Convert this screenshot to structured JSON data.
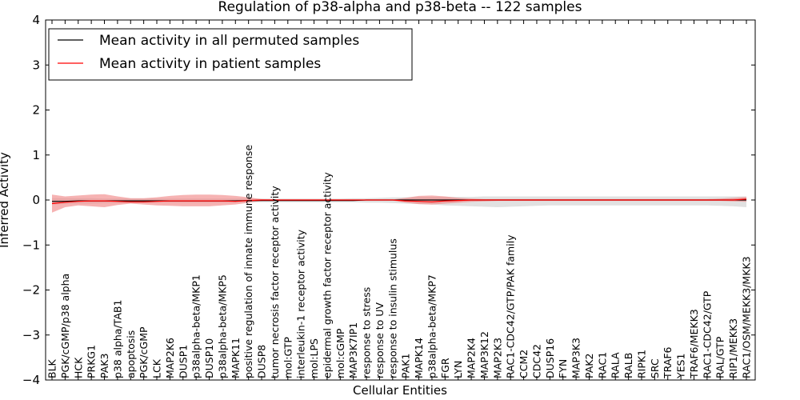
{
  "chart_data": {
    "type": "line",
    "title": "Regulation of p38-alpha and p38-beta -- 122 samples",
    "xlabel": "Cellular Entities",
    "ylabel": "Inferred Activity",
    "ylim": [
      -4,
      4
    ],
    "yticks": [
      -4,
      -3,
      -2,
      -1,
      0,
      1,
      2,
      3,
      4
    ],
    "ytick_labels": [
      "−4",
      "−3",
      "−2",
      "−1",
      "0",
      "1",
      "2",
      "3",
      "4"
    ],
    "legend_position": "top-left",
    "categories": [
      "BLK",
      "PGK/cGMP/p38 alpha",
      "HCK",
      "PRKG1",
      "PAK3",
      "p38 alpha/TAB1",
      "apoptosis",
      "PGK/cGMP",
      "LCK",
      "MAP2K6",
      "DUSP1",
      "p38alpha-beta/MKP1",
      "DUSP10",
      "p38alpha-beta/MKP5",
      "MAPK11",
      "positive regulation of innate immune response",
      "DUSP8",
      "tumor necrosis factor receptor activity",
      "mol:GTP",
      "interleukin-1 receptor activity",
      "mol:LPS",
      "epidermal growth factor receptor activity",
      "mol:cGMP",
      "MAP3K7IP1",
      "response to stress",
      "response to UV",
      "response to insulin stimulus",
      "PAK1",
      "MAPK14",
      "p38alpha-beta/MKP7",
      "FGR",
      "LYN",
      "MAP2K4",
      "MAP3K12",
      "MAP2K3",
      "RAC1-CDC42/GTP/PAK family",
      "CCM2",
      "CDC42",
      "DUSP16",
      "FYN",
      "MAP3K3",
      "PAK2",
      "RAC1",
      "RALA",
      "RALB",
      "RIPK1",
      "SRC",
      "TRAF6",
      "YES1",
      "TRAF6/MEKK3",
      "RAC1-CDC42/GTP",
      "RAL/GTP",
      "RIP1/MEKK3",
      "RAC1/OSM/MEKK3/MKK3"
    ],
    "series": [
      {
        "name": "Mean activity in all permuted samples",
        "color": "#000000",
        "values": [
          -0.03,
          -0.03,
          -0.02,
          -0.02,
          -0.02,
          -0.02,
          -0.02,
          -0.02,
          -0.02,
          -0.02,
          -0.02,
          -0.02,
          -0.02,
          -0.02,
          -0.02,
          -0.01,
          -0.01,
          -0.01,
          -0.01,
          -0.01,
          -0.01,
          -0.01,
          -0.01,
          -0.01,
          0,
          0,
          0,
          0,
          0,
          0,
          0,
          0,
          0,
          0,
          0,
          0,
          0,
          0,
          0,
          0,
          0,
          0,
          0,
          0,
          0,
          0,
          0,
          0,
          0,
          0,
          0,
          0,
          0,
          0
        ],
        "band_upper": [
          0.04,
          0.04,
          0.04,
          0.04,
          0.03,
          0.03,
          0.03,
          0.03,
          0.03,
          0.03,
          0.03,
          0.03,
          0.03,
          0.03,
          0.03,
          0.03,
          0.03,
          0.03,
          0.03,
          0.03,
          0.03,
          0.03,
          0.03,
          0.04,
          0.04,
          0.05,
          0.06,
          0.06,
          0.07,
          0.07,
          0.07,
          0.07,
          0.07,
          0.08,
          0.08,
          0.08,
          0.08,
          0.08,
          0.08,
          0.08,
          0.08,
          0.08,
          0.08,
          0.08,
          0.08,
          0.08,
          0.08,
          0.08,
          0.08,
          0.08,
          0.08,
          0.08,
          0.08,
          0.08
        ],
        "band_lower": [
          -0.1,
          -0.09,
          -0.08,
          -0.08,
          -0.07,
          -0.07,
          -0.07,
          -0.07,
          -0.06,
          -0.06,
          -0.06,
          -0.06,
          -0.06,
          -0.06,
          -0.06,
          -0.05,
          -0.05,
          -0.05,
          -0.05,
          -0.05,
          -0.05,
          -0.05,
          -0.05,
          -0.05,
          -0.06,
          -0.06,
          -0.07,
          -0.08,
          -0.09,
          -0.1,
          -0.12,
          -0.13,
          -0.14,
          -0.15,
          -0.16,
          -0.15,
          -0.14,
          -0.13,
          -0.12,
          -0.12,
          -0.12,
          -0.12,
          -0.12,
          -0.12,
          -0.12,
          -0.12,
          -0.12,
          -0.12,
          -0.12,
          -0.12,
          -0.12,
          -0.13,
          -0.14,
          -0.16
        ]
      },
      {
        "name": "Mean activity in patient samples",
        "color": "#ff0000",
        "values": [
          -0.08,
          -0.05,
          -0.03,
          -0.02,
          -0.02,
          -0.03,
          -0.04,
          -0.04,
          -0.03,
          -0.02,
          -0.02,
          -0.02,
          -0.02,
          -0.02,
          -0.03,
          -0.01,
          0,
          0,
          0,
          0,
          0,
          0,
          0,
          0,
          0,
          0,
          0,
          -0.02,
          -0.03,
          -0.04,
          -0.02,
          -0.01,
          0,
          0,
          0,
          0,
          0,
          0,
          0,
          0,
          0,
          0,
          0,
          0,
          0,
          0,
          0,
          0,
          0,
          0,
          0,
          0,
          0,
          0.02
        ],
        "band_upper": [
          0.12,
          0.08,
          0.1,
          0.12,
          0.13,
          0.08,
          0.04,
          0.04,
          0.06,
          0.09,
          0.11,
          0.12,
          0.12,
          0.11,
          0.09,
          0.06,
          0.02,
          0.01,
          0.01,
          0.01,
          0.01,
          0.01,
          0.01,
          0.01,
          0.01,
          0.01,
          0.01,
          0.05,
          0.09,
          0.1,
          0.08,
          0.05,
          0.03,
          0.02,
          0.02,
          0.02,
          0.02,
          0.02,
          0.02,
          0.02,
          0.02,
          0.02,
          0.02,
          0.02,
          0.02,
          0.02,
          0.02,
          0.02,
          0.02,
          0.02,
          0.02,
          0.03,
          0.05,
          0.07
        ],
        "band_lower": [
          -0.28,
          -0.16,
          -0.12,
          -0.14,
          -0.16,
          -0.11,
          -0.08,
          -0.1,
          -0.12,
          -0.13,
          -0.14,
          -0.14,
          -0.14,
          -0.12,
          -0.1,
          -0.06,
          -0.02,
          -0.01,
          -0.01,
          -0.01,
          -0.01,
          -0.01,
          -0.01,
          -0.01,
          -0.01,
          -0.01,
          -0.01,
          -0.06,
          -0.09,
          -0.1,
          -0.08,
          -0.06,
          -0.04,
          -0.03,
          -0.02,
          -0.02,
          -0.02,
          -0.02,
          -0.02,
          -0.02,
          -0.02,
          -0.02,
          -0.02,
          -0.02,
          -0.02,
          -0.02,
          -0.02,
          -0.02,
          -0.02,
          -0.02,
          -0.02,
          -0.02,
          -0.03,
          -0.04
        ]
      }
    ],
    "band_colors": [
      "#c8c8c8",
      "#f08080"
    ]
  }
}
